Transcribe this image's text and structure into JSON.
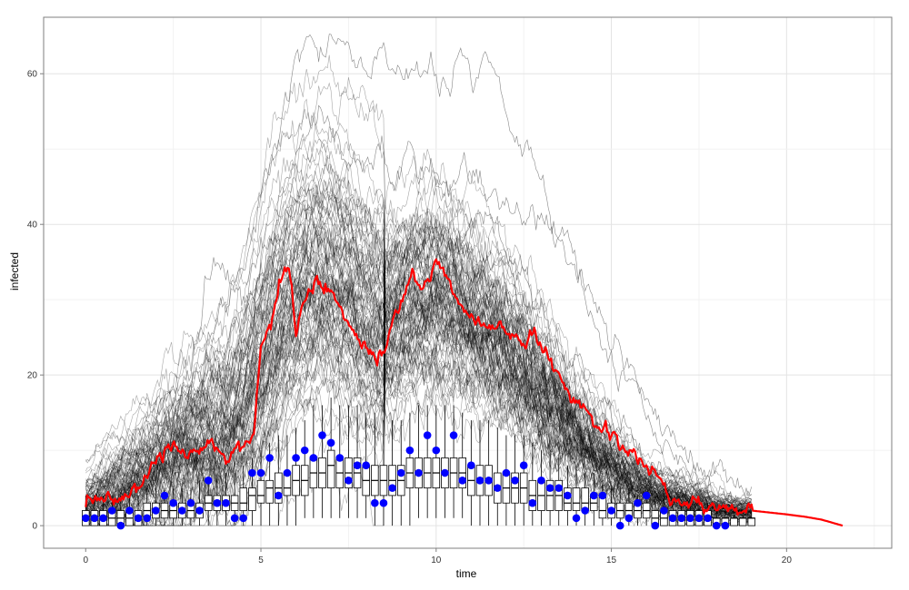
{
  "chart_data": {
    "type": "line",
    "title": "",
    "xlabel": "time",
    "ylabel": "infected",
    "xlim": [
      -1.2,
      23
    ],
    "ylim": [
      -3,
      67.5
    ],
    "x_ticks": [
      0,
      5,
      10,
      15,
      20
    ],
    "y_ticks": [
      0,
      20,
      40,
      60
    ],
    "x_tick_labels": [
      "0",
      "5",
      "10",
      "15",
      "20"
    ],
    "y_tick_labels": [
      "0",
      "20",
      "40",
      "60"
    ],
    "grid": true,
    "legend": "none",
    "colors": {
      "simulations": "#000000",
      "highlight": "#ff0000",
      "observed": "#0000ff",
      "box": "#000000"
    },
    "simulations": {
      "count": 100,
      "description_of_envelope": "ensemble of stochastic trajectories",
      "t_end": 19.0
    },
    "envelope": {
      "x": [
        0,
        1,
        2,
        3,
        4,
        4.5,
        5,
        5.5,
        6,
        6.5,
        7,
        7.5,
        8,
        8.5,
        9,
        9.5,
        10,
        10.5,
        11,
        11.5,
        12,
        12.5,
        13,
        13.5,
        14,
        14.5,
        15,
        15.5,
        16,
        16.5,
        17,
        17.5,
        18,
        18.5,
        19
      ],
      "center": [
        3,
        5,
        8,
        11,
        13,
        16,
        22,
        28,
        32,
        34,
        34,
        32,
        29,
        27,
        29,
        31,
        31,
        30,
        28,
        26,
        24,
        21,
        18,
        15,
        12,
        10,
        8,
        6,
        5,
        4,
        3,
        3,
        2,
        2,
        2
      ],
      "spread": [
        2,
        3,
        4,
        5,
        6,
        7,
        8,
        9,
        9,
        9,
        9,
        9,
        9,
        9,
        9,
        9,
        9,
        9,
        9,
        8,
        8,
        7,
        6,
        5,
        4,
        4,
        3,
        3,
        2,
        2,
        2,
        2,
        1,
        1,
        1
      ]
    },
    "outlier_series": [
      {
        "x": [
          0,
          2,
          3.5,
          4.5,
          5.5,
          6,
          7,
          8,
          9,
          10,
          10.6,
          11.5,
          12.5,
          13.5,
          14.5,
          15.5,
          16.5,
          17.5,
          19
        ],
        "y": [
          2,
          10,
          24,
          36,
          50,
          62,
          63,
          62,
          60,
          58,
          63,
          59,
          50,
          38,
          27,
          18,
          11,
          6,
          3
        ]
      },
      {
        "x": [
          0,
          2,
          3.5,
          4.5,
          5.5,
          6,
          6.7,
          7.5,
          8.5,
          9.5,
          10.5,
          11.5,
          12.5,
          13.5,
          14.5,
          15.5,
          16.5,
          17.5,
          19
        ],
        "y": [
          2,
          8,
          20,
          30,
          42,
          52,
          55,
          50,
          46,
          48,
          46,
          44,
          42,
          38,
          30,
          22,
          14,
          8,
          4
        ]
      },
      {
        "x": [
          0,
          2,
          3,
          3.7,
          4.5,
          5.5,
          6.5,
          7.5,
          8.5,
          9.5,
          10.5,
          11.5,
          12.5,
          13.5,
          14.5,
          15.5,
          16.5,
          17.5,
          19
        ],
        "y": [
          2,
          12,
          20,
          35,
          30,
          38,
          45,
          42,
          36,
          35,
          38,
          40,
          32,
          25,
          18,
          13,
          8,
          5,
          3
        ]
      }
    ],
    "highlight_series": {
      "x": [
        0,
        0.5,
        1,
        1.5,
        2,
        2.5,
        3,
        3.5,
        4,
        4.5,
        4.8,
        5,
        5.3,
        5.6,
        5.8,
        6,
        6.3,
        6.6,
        7,
        7.3,
        7.6,
        8,
        8.3,
        8.6,
        9,
        9.3,
        9.6,
        10,
        10.3,
        10.6,
        11,
        11.5,
        12,
        12.5,
        12.8,
        13,
        13.5,
        14,
        14.5,
        15,
        15.5,
        16,
        16.5,
        17,
        17.5,
        18,
        19,
        20,
        20.5,
        21,
        21.6
      ],
      "y": [
        3,
        3.5,
        4,
        5,
        9,
        10,
        9,
        11,
        8,
        11,
        13,
        24,
        27,
        33,
        34,
        27,
        30,
        32,
        32,
        28,
        26,
        24,
        22,
        24,
        30,
        33,
        32,
        35,
        33,
        30,
        28,
        27,
        26,
        24,
        26,
        24,
        20,
        17,
        14,
        12,
        10,
        8,
        5,
        3,
        3,
        2,
        2,
        1.5,
        1.2,
        0.8,
        0
      ]
    },
    "observed_points": {
      "x": [
        0,
        0.25,
        0.5,
        0.75,
        1,
        1.25,
        1.5,
        1.75,
        2,
        2.25,
        2.5,
        2.75,
        3,
        3.25,
        3.5,
        3.75,
        4,
        4.25,
        4.5,
        4.75,
        5,
        5.25,
        5.5,
        5.75,
        6,
        6.25,
        6.5,
        6.75,
        7,
        7.25,
        7.5,
        7.75,
        8,
        8.25,
        8.5,
        8.75,
        9,
        9.25,
        9.5,
        9.75,
        10,
        10.25,
        10.5,
        10.75,
        11,
        11.25,
        11.5,
        11.75,
        12,
        12.25,
        12.5,
        12.75,
        13,
        13.25,
        13.5,
        13.75,
        14,
        14.25,
        14.5,
        14.75,
        15,
        15.25,
        15.5,
        15.75,
        16,
        16.25,
        16.5,
        16.75,
        17,
        17.25,
        17.5,
        17.75,
        18,
        18.25
      ],
      "y": [
        1,
        1,
        1,
        2,
        0,
        2,
        1,
        1,
        2,
        4,
        3,
        2,
        3,
        2,
        6,
        3,
        3,
        1,
        1,
        7,
        7,
        9,
        4,
        7,
        9,
        10,
        9,
        12,
        11,
        9,
        6,
        8,
        8,
        3,
        3,
        5,
        7,
        10,
        7,
        12,
        10,
        7,
        12,
        6,
        8,
        6,
        6,
        5,
        7,
        6,
        8,
        3,
        6,
        5,
        5,
        4,
        1,
        2,
        4,
        4,
        2,
        0,
        1,
        3,
        4,
        0,
        2,
        1,
        1,
        1,
        1,
        1,
        0,
        0
      ]
    },
    "boxplots": {
      "x": [
        0,
        0.25,
        0.5,
        0.75,
        1,
        1.25,
        1.5,
        1.75,
        2,
        2.25,
        2.5,
        2.75,
        3,
        3.25,
        3.5,
        3.75,
        4,
        4.25,
        4.5,
        4.75,
        5,
        5.25,
        5.5,
        5.75,
        6,
        6.25,
        6.5,
        6.75,
        7,
        7.25,
        7.5,
        7.75,
        8,
        8.25,
        8.5,
        8.75,
        9,
        9.25,
        9.5,
        9.75,
        10,
        10.25,
        10.5,
        10.75,
        11,
        11.25,
        11.5,
        11.75,
        12,
        12.25,
        12.5,
        12.75,
        13,
        13.25,
        13.5,
        13.75,
        14,
        14.25,
        14.5,
        14.75,
        15,
        15.25,
        15.5,
        15.75,
        16,
        16.25,
        16.5,
        16.75,
        17,
        17.25,
        17.5,
        17.75,
        18,
        18.25,
        18.5,
        18.75,
        19
      ],
      "median": [
        1,
        1,
        1,
        1,
        1,
        1,
        1,
        2,
        2,
        2,
        2,
        2,
        2,
        2,
        3,
        3,
        3,
        3,
        3,
        4,
        4,
        5,
        5,
        5,
        6,
        6,
        7,
        7,
        8,
        7,
        7,
        7,
        6,
        6,
        6,
        6,
        6,
        7,
        7,
        7,
        7,
        7,
        7,
        7,
        6,
        6,
        6,
        5,
        5,
        5,
        5,
        4,
        4,
        4,
        4,
        3,
        3,
        3,
        3,
        2,
        2,
        2,
        2,
        2,
        2,
        1,
        1,
        1,
        1,
        1,
        1,
        1,
        1,
        1,
        1,
        1,
        1
      ],
      "q1": [
        0,
        0,
        0,
        0,
        0,
        0,
        0,
        1,
        1,
        1,
        1,
        1,
        1,
        1,
        2,
        2,
        2,
        2,
        2,
        2,
        3,
        3,
        3,
        4,
        4,
        4,
        5,
        5,
        5,
        5,
        5,
        5,
        4,
        4,
        4,
        4,
        4,
        5,
        5,
        5,
        5,
        5,
        5,
        5,
        4,
        4,
        4,
        3,
        3,
        3,
        3,
        2,
        2,
        2,
        2,
        2,
        2,
        2,
        2,
        1,
        1,
        1,
        1,
        1,
        1,
        0,
        0,
        0,
        0,
        0,
        0,
        0,
        0,
        0,
        0,
        0,
        0
      ],
      "q3": [
        2,
        2,
        2,
        2,
        2,
        2,
        2,
        3,
        3,
        3,
        3,
        3,
        3,
        3,
        4,
        4,
        4,
        4,
        5,
        5,
        6,
        6,
        7,
        7,
        8,
        8,
        9,
        9,
        10,
        9,
        9,
        9,
        8,
        8,
        8,
        8,
        8,
        9,
        9,
        9,
        9,
        9,
        9,
        9,
        8,
        8,
        8,
        7,
        7,
        7,
        7,
        6,
        6,
        6,
        6,
        5,
        5,
        5,
        4,
        4,
        3,
        3,
        3,
        3,
        3,
        2,
        2,
        2,
        2,
        2,
        2,
        2,
        1,
        1,
        1,
        1,
        1
      ],
      "low": [
        0,
        0,
        0,
        0,
        0,
        0,
        0,
        0,
        0,
        0,
        0,
        0,
        0,
        0,
        0,
        0,
        0,
        0,
        0,
        0,
        0,
        0,
        0,
        0,
        0,
        1,
        1,
        1,
        1,
        1,
        1,
        1,
        1,
        0,
        0,
        0,
        0,
        0,
        1,
        1,
        1,
        1,
        1,
        1,
        0,
        0,
        0,
        0,
        0,
        0,
        0,
        0,
        0,
        0,
        0,
        0,
        0,
        0,
        0,
        0,
        0,
        0,
        0,
        0,
        0,
        0,
        0,
        0,
        0,
        0,
        0,
        0,
        0,
        0,
        0,
        0,
        0
      ],
      "high": [
        4,
        4,
        4,
        4,
        4,
        4,
        4,
        5,
        5,
        5,
        5,
        5,
        5,
        6,
        6,
        6,
        7,
        7,
        8,
        9,
        10,
        11,
        12,
        12,
        13,
        14,
        16,
        16,
        17,
        16,
        16,
        16,
        15,
        15,
        14,
        14,
        14,
        15,
        16,
        16,
        16,
        16,
        16,
        15,
        14,
        14,
        14,
        13,
        12,
        12,
        12,
        11,
        10,
        10,
        9,
        8,
        8,
        7,
        7,
        6,
        5,
        5,
        5,
        4,
        4,
        4,
        4,
        3,
        3,
        3,
        3,
        3,
        2,
        2,
        2,
        2,
        2
      ]
    }
  }
}
